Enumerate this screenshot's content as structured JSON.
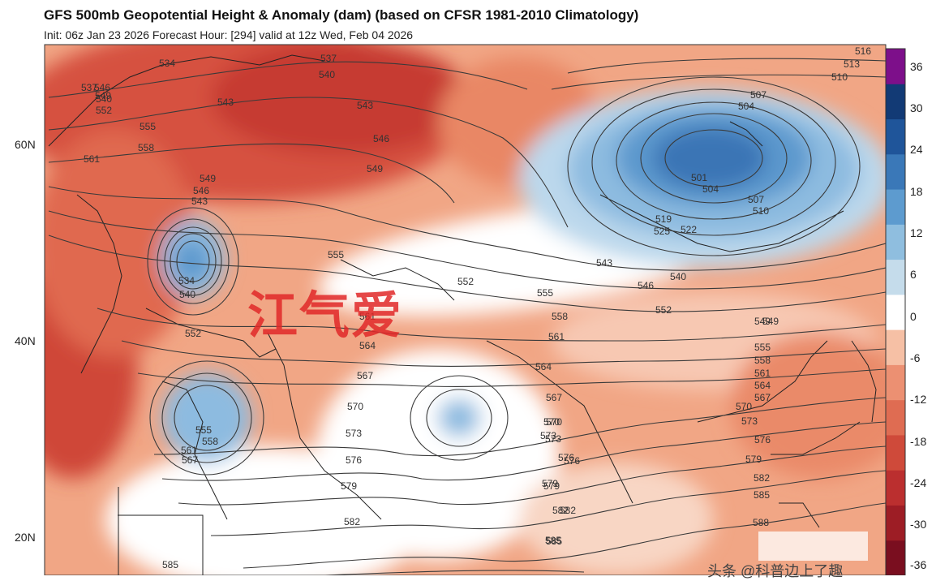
{
  "header": {
    "title": "GFS 500mb Geopotential Height & Anomaly (dam) (based on CFSR 1981-2010 Climatology)",
    "subtitle": "Init: 06z Jan 23 2026   Forecast Hour: [294]   valid at 12z Wed, Feb 04 2026"
  },
  "latitude_labels": [
    "60N",
    "40N",
    "20N"
  ],
  "colorbar": {
    "labels": [
      "36",
      "30",
      "24",
      "18",
      "12",
      "6",
      "0",
      "-6",
      "-12",
      "-18",
      "-24",
      "-30",
      "-36"
    ],
    "colors": [
      "#7a0e1f",
      "#9d1d25",
      "#bb2f2f",
      "#cf4a3a",
      "#df6c52",
      "#ec9072",
      "#f6c0a5",
      "#ffffff",
      "#c5dceb",
      "#8fbedf",
      "#5d9bcf",
      "#3a78b8",
      "#1f559a",
      "#123a75",
      "#7d0f8a"
    ]
  },
  "contours": {
    "labels": [
      "537",
      "534",
      "540",
      "546",
      "549",
      "552",
      "555",
      "558",
      "561",
      "543",
      "537",
      "540",
      "543",
      "546",
      "549",
      "549",
      "546",
      "543",
      "534",
      "540",
      "552",
      "555",
      "552",
      "561",
      "564",
      "567",
      "570",
      "573",
      "576",
      "579",
      "582",
      "585",
      "555",
      "558",
      "561",
      "567",
      "570",
      "573",
      "576",
      "579",
      "582",
      "585",
      "516",
      "513",
      "510",
      "507",
      "504",
      "501",
      "504",
      "507",
      "510",
      "519",
      "525",
      "522",
      "543",
      "546",
      "540",
      "549",
      "552",
      "555",
      "558",
      "561",
      "564",
      "549",
      "555",
      "558",
      "561",
      "564",
      "567",
      "570",
      "573",
      "576",
      "579",
      "582",
      "585",
      "588",
      "567",
      "570",
      "573",
      "576",
      "579",
      "582",
      "585"
    ]
  },
  "overlay_text": "江气爱",
  "watermark_credit": "头条 @科普边上了趣"
}
